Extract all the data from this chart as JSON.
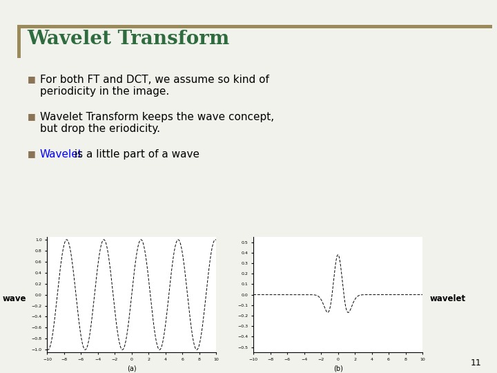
{
  "title": "Wavelet Transform",
  "title_color": "#2E6B3E",
  "background_color": "#F2F2EC",
  "bullet_color": "#8B7355",
  "bullet1": "For both FT and DCT, we assume so kind of\nperiodicity in the image.",
  "bullet2": "Wavelet Transform keeps the wave concept,\nbut drop the eriodicity.",
  "bullet3_blue": "Wavelet",
  "bullet3_black": " is a little part of a wave",
  "wavelet_word_color": "#0000FF",
  "wave_label": "wave",
  "wavelet_label": "wavelet",
  "plot_a_xlabel": "(a)",
  "plot_b_xlabel": "(b)",
  "wave_xlim": [
    -10,
    10
  ],
  "wave_ylim": [
    -1.0,
    1.0
  ],
  "wavelet_xlim": [
    -10,
    10
  ],
  "wavelet_ylim": [
    -0.5,
    0.5
  ],
  "slide_number": "11",
  "accent_bar_color": "#9B8B5A",
  "line_color": "#9B8B5A"
}
